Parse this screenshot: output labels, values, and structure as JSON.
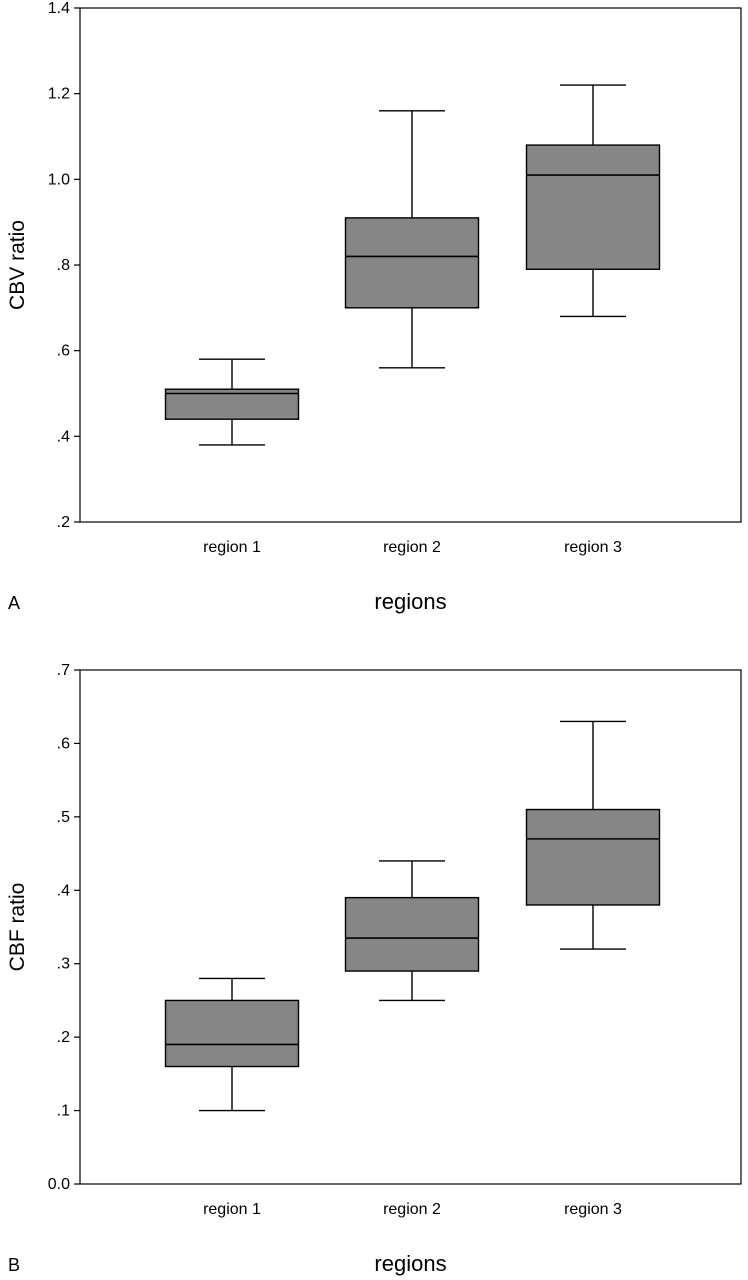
{
  "colors": {
    "box_fill": "#868686",
    "stroke": "#000000",
    "background": "#ffffff"
  },
  "chart_data": [
    {
      "type": "box",
      "panel_label": "A",
      "title": "",
      "xlabel": "regions",
      "ylabel": "CBV ratio",
      "ylim": [
        0.2,
        1.4
      ],
      "yticks": [
        {
          "value": 0.2,
          "label": ".2"
        },
        {
          "value": 0.4,
          "label": ".4"
        },
        {
          "value": 0.6,
          "label": ".6"
        },
        {
          "value": 0.8,
          "label": ".8"
        },
        {
          "value": 1.0,
          "label": "1.0"
        },
        {
          "value": 1.2,
          "label": "1.2"
        },
        {
          "value": 1.4,
          "label": "1.4"
        }
      ],
      "grid": false,
      "categories": [
        "region 1",
        "region 2",
        "region 3"
      ],
      "boxes": [
        {
          "category": "region 1",
          "whisker_low": 0.38,
          "q1": 0.44,
          "median": 0.5,
          "q3": 0.51,
          "whisker_high": 0.58
        },
        {
          "category": "region 2",
          "whisker_low": 0.56,
          "q1": 0.7,
          "median": 0.82,
          "q3": 0.91,
          "whisker_high": 1.16
        },
        {
          "category": "region 3",
          "whisker_low": 0.68,
          "q1": 0.79,
          "median": 1.01,
          "q3": 1.08,
          "whisker_high": 1.22
        }
      ]
    },
    {
      "type": "box",
      "panel_label": "B",
      "title": "",
      "xlabel": "regions",
      "ylabel": "CBF ratio",
      "ylim": [
        0.0,
        0.7
      ],
      "yticks": [
        {
          "value": 0.0,
          "label": "0.0"
        },
        {
          "value": 0.1,
          "label": ".1"
        },
        {
          "value": 0.2,
          "label": ".2"
        },
        {
          "value": 0.3,
          "label": ".3"
        },
        {
          "value": 0.4,
          "label": ".4"
        },
        {
          "value": 0.5,
          "label": ".5"
        },
        {
          "value": 0.6,
          "label": ".6"
        },
        {
          "value": 0.7,
          "label": ".7"
        }
      ],
      "grid": false,
      "categories": [
        "region 1",
        "region 2",
        "region 3"
      ],
      "boxes": [
        {
          "category": "region 1",
          "whisker_low": 0.1,
          "q1": 0.16,
          "median": 0.19,
          "q3": 0.25,
          "whisker_high": 0.28
        },
        {
          "category": "region 2",
          "whisker_low": 0.25,
          "q1": 0.29,
          "median": 0.335,
          "q3": 0.39,
          "whisker_high": 0.44
        },
        {
          "category": "region 3",
          "whisker_low": 0.32,
          "q1": 0.38,
          "median": 0.47,
          "q3": 0.51,
          "whisker_high": 0.63
        }
      ]
    }
  ]
}
